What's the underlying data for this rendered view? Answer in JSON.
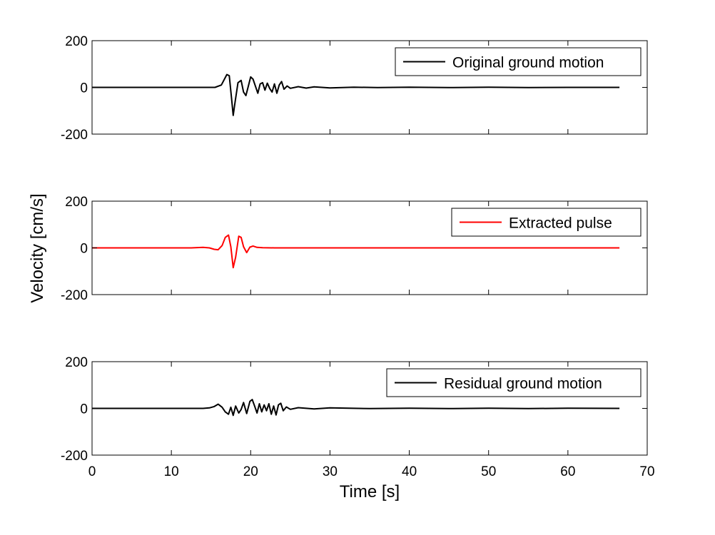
{
  "chart_data": {
    "type": "line",
    "xlabel": "Time [s]",
    "ylabel": "Velocity [cm/s]",
    "xlim": [
      0,
      70
    ],
    "xticks": [
      "0",
      "10",
      "20",
      "30",
      "40",
      "50",
      "60",
      "70"
    ],
    "ylim": [
      -200,
      200
    ],
    "yticks": [
      "-200",
      "0",
      "200"
    ],
    "grid": false,
    "panels": [
      {
        "legend": "Original ground motion",
        "legend_location": "top-right",
        "color": "#000000",
        "series": [
          {
            "name": "Original ground motion",
            "x": [
              0,
              14,
              15.5,
              16.3,
              17.0,
              17.3,
              17.6,
              17.8,
              18.0,
              18.4,
              18.8,
              19.1,
              19.4,
              19.7,
              20.0,
              20.3,
              20.6,
              20.9,
              21.2,
              21.5,
              21.8,
              22.1,
              22.4,
              22.7,
              23.0,
              23.3,
              23.6,
              23.9,
              24.2,
              24.6,
              25.0,
              26,
              27,
              28,
              30,
              33,
              36,
              40,
              45,
              50,
              55,
              60,
              66.5
            ],
            "y": [
              0,
              0,
              0,
              10,
              55,
              50,
              -50,
              -120,
              -70,
              20,
              30,
              -20,
              -35,
              5,
              45,
              35,
              5,
              -25,
              15,
              20,
              -12,
              18,
              -5,
              -20,
              15,
              -25,
              10,
              25,
              -8,
              6,
              -4,
              3,
              -3,
              2,
              -2,
              1,
              -1,
              1,
              -1,
              1,
              -1,
              0,
              0
            ]
          }
        ]
      },
      {
        "legend": "Extracted pulse",
        "legend_location": "top-right",
        "color": "#ff0000",
        "series": [
          {
            "name": "Extracted pulse",
            "x": [
              0,
              12.5,
              14.0,
              14.8,
              15.4,
              15.9,
              16.4,
              16.8,
              17.2,
              17.5,
              17.8,
              18.1,
              18.5,
              18.8,
              19.1,
              19.5,
              19.9,
              20.3,
              20.8,
              21.5,
              23,
              30,
              45,
              66.5
            ],
            "y": [
              0,
              0,
              2,
              0,
              -6,
              -8,
              10,
              45,
              55,
              5,
              -85,
              -40,
              50,
              45,
              5,
              -20,
              3,
              8,
              2,
              1,
              0,
              0,
              0,
              0
            ]
          }
        ]
      },
      {
        "legend": "Residual ground motion",
        "legend_location": "top-right",
        "color": "#000000",
        "series": [
          {
            "name": "Residual ground motion",
            "x": [
              0,
              14.0,
              14.8,
              15.4,
              15.9,
              16.4,
              16.8,
              17.2,
              17.5,
              17.8,
              18.1,
              18.5,
              18.8,
              19.1,
              19.5,
              19.9,
              20.2,
              20.5,
              20.8,
              21.1,
              21.4,
              21.7,
              22.0,
              22.3,
              22.6,
              22.9,
              23.2,
              23.5,
              23.8,
              24.1,
              24.5,
              25,
              26,
              28,
              30,
              35,
              40,
              45,
              50,
              55,
              60,
              66.5
            ],
            "y": [
              0,
              0,
              2,
              8,
              18,
              5,
              -15,
              -25,
              5,
              -30,
              10,
              -20,
              -5,
              25,
              -22,
              30,
              38,
              10,
              -20,
              20,
              -15,
              15,
              -10,
              20,
              -25,
              10,
              -28,
              15,
              22,
              -10,
              6,
              -4,
              3,
              -2,
              2,
              -1,
              1,
              -1,
              1,
              -1,
              1,
              0
            ]
          }
        ]
      }
    ]
  }
}
